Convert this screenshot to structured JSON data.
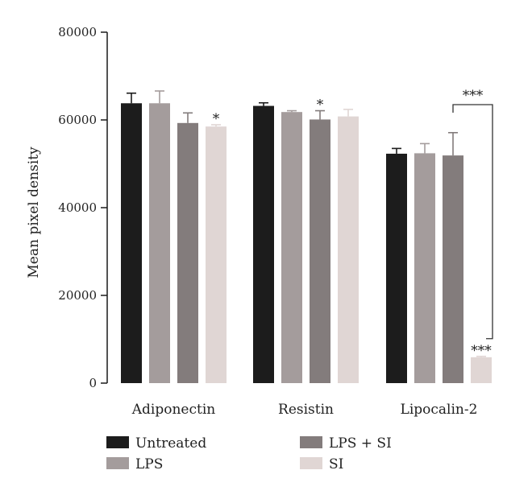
{
  "chart_data": {
    "type": "bar",
    "title": "",
    "xlabel": "",
    "ylabel": "Mean pixel density",
    "ylim": [
      0,
      80000
    ],
    "yticks": [
      0,
      20000,
      40000,
      60000,
      80000
    ],
    "grid": false,
    "legend_position": "bottom",
    "categories": [
      "Adiponectin",
      "Resistin",
      "Lipocalin-2"
    ],
    "series": [
      {
        "name": "Untreated",
        "color": "#1c1c1c",
        "values": [
          63800,
          63200,
          52300
        ],
        "errors": [
          2300,
          700,
          1200
        ]
      },
      {
        "name": "LPS",
        "color": "#a49c9c",
        "values": [
          63800,
          61800,
          52400
        ],
        "errors": [
          2800,
          300,
          2200
        ]
      },
      {
        "name": "LPS + SI",
        "color": "#837c7c",
        "values": [
          59300,
          60100,
          51900
        ],
        "errors": [
          2300,
          2000,
          5200
        ]
      },
      {
        "name": "SI",
        "color": "#e0d6d4",
        "values": [
          58500,
          60800,
          5900
        ],
        "errors": [
          400,
          1600,
          200
        ]
      }
    ],
    "annotations": [
      {
        "category": 0,
        "series": 3,
        "text": "*"
      },
      {
        "category": 1,
        "series": 2,
        "text": "*"
      },
      {
        "category": 2,
        "series": 3,
        "text": "***"
      }
    ],
    "bracket": {
      "category": 2,
      "from_series": 2,
      "to_series": 3,
      "text": "***"
    }
  }
}
